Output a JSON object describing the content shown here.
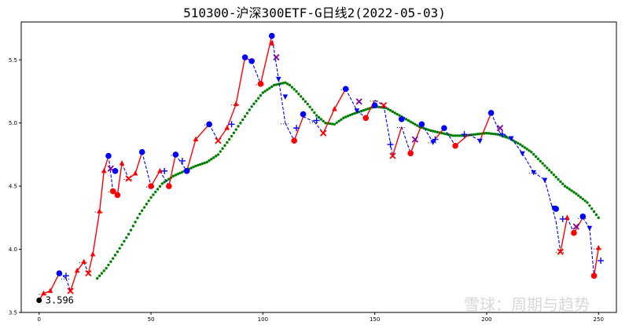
{
  "chart_data": {
    "type": "line",
    "title": "510300-沪深300ETF-G日线2(2022-05-03)",
    "xlim": [
      -8,
      258
    ],
    "ylim": [
      3.5,
      5.8
    ],
    "x_ticks": [
      0,
      50,
      100,
      150,
      200,
      250
    ],
    "y_ticks": [
      3.5,
      4.0,
      4.5,
      5.0,
      5.5
    ],
    "y_tick_labels": [
      "3.5",
      "4.0",
      "4.5",
      "5.0",
      "5.5"
    ],
    "grid": false,
    "annotation": {
      "text": "3.596",
      "x": 0,
      "y": 3.596
    },
    "watermark": "雪球：周期与趋势",
    "colors": {
      "up": "#ff0000",
      "down": "#0000ff",
      "ma": "#008000",
      "start": "#000000"
    },
    "price_series": [
      [
        0,
        3.6,
        "start"
      ],
      [
        2,
        3.65,
        "up"
      ],
      [
        5,
        3.67,
        "up"
      ],
      [
        9,
        3.81,
        "up"
      ],
      [
        12,
        3.77,
        "down"
      ],
      [
        14,
        3.67,
        "down"
      ],
      [
        17,
        3.83,
        "up"
      ],
      [
        20,
        3.9,
        "up"
      ],
      [
        22,
        3.81,
        "down"
      ],
      [
        24,
        3.96,
        "up"
      ],
      [
        27,
        4.3,
        "up"
      ],
      [
        29,
        4.62,
        "up"
      ],
      [
        31,
        4.74,
        "up"
      ],
      [
        33,
        4.46,
        "down"
      ],
      [
        35,
        4.43,
        "down"
      ],
      [
        37,
        4.68,
        "up"
      ],
      [
        40,
        4.56,
        "down"
      ],
      [
        43,
        4.6,
        "up"
      ],
      [
        46,
        4.77,
        "up"
      ],
      [
        50,
        4.5,
        "down"
      ],
      [
        54,
        4.62,
        "up"
      ],
      [
        58,
        4.5,
        "down"
      ],
      [
        61,
        4.75,
        "up"
      ],
      [
        66,
        4.62,
        "down"
      ],
      [
        70,
        4.87,
        "up"
      ],
      [
        76,
        4.99,
        "up"
      ],
      [
        80,
        4.86,
        "down"
      ],
      [
        84,
        4.96,
        "up"
      ],
      [
        88,
        5.15,
        "up"
      ],
      [
        92,
        5.52,
        "up"
      ],
      [
        95,
        5.49,
        "up"
      ],
      [
        99,
        5.31,
        "down"
      ],
      [
        104,
        5.69,
        "up"
      ],
      [
        107,
        5.35,
        "down"
      ],
      [
        110,
        5.0,
        "down"
      ],
      [
        114,
        4.86,
        "down"
      ],
      [
        118,
        5.05,
        "up"
      ],
      [
        123,
        5.01,
        "down"
      ],
      [
        127,
        4.92,
        "down"
      ],
      [
        132,
        5.11,
        "up"
      ],
      [
        137,
        5.27,
        "up"
      ],
      [
        142,
        5.1,
        "down"
      ],
      [
        146,
        5.04,
        "down"
      ],
      [
        150,
        5.18,
        "up"
      ],
      [
        154,
        5.14,
        "down"
      ],
      [
        158,
        4.74,
        "down"
      ],
      [
        162,
        4.97,
        "up"
      ],
      [
        166,
        4.76,
        "down"
      ],
      [
        171,
        4.99,
        "up"
      ],
      [
        176,
        4.85,
        "down"
      ],
      [
        181,
        4.96,
        "up"
      ],
      [
        186,
        4.82,
        "down"
      ],
      [
        192,
        4.91,
        "up"
      ],
      [
        197,
        4.86,
        "down"
      ],
      [
        202,
        5.08,
        "up"
      ],
      [
        206,
        4.92,
        "down"
      ],
      [
        211,
        4.88,
        "down"
      ],
      [
        216,
        4.76,
        "down"
      ],
      [
        221,
        4.61,
        "down"
      ],
      [
        226,
        4.55,
        "down"
      ],
      [
        231,
        4.22,
        "down"
      ],
      [
        233,
        3.98,
        "down"
      ],
      [
        236,
        4.25,
        "up"
      ],
      [
        239,
        4.13,
        "down"
      ],
      [
        243,
        4.25,
        "up"
      ],
      [
        246,
        4.17,
        "down"
      ],
      [
        248,
        3.79,
        "down"
      ],
      [
        250,
        4.01,
        "up"
      ]
    ],
    "markers": [
      {
        "shape": "circle",
        "color": "#0000ff",
        "points": [
          [
            9,
            3.81
          ],
          [
            31,
            4.74
          ],
          [
            34,
            4.62
          ],
          [
            46,
            4.77
          ],
          [
            61,
            4.75
          ],
          [
            66,
            4.62
          ],
          [
            76,
            4.99
          ],
          [
            92,
            5.52
          ],
          [
            95,
            5.49
          ],
          [
            104,
            5.69
          ],
          [
            118,
            5.07
          ],
          [
            137,
            5.27
          ],
          [
            150,
            5.14
          ],
          [
            162,
            5.03
          ],
          [
            171,
            4.99
          ],
          [
            181,
            4.96
          ],
          [
            202,
            5.08
          ],
          [
            231,
            4.32
          ],
          [
            243,
            4.26
          ]
        ]
      },
      {
        "shape": "circle",
        "color": "#ff0000",
        "points": [
          [
            33,
            4.46
          ],
          [
            35,
            4.43
          ],
          [
            50,
            4.5
          ],
          [
            58,
            4.5
          ],
          [
            99,
            5.31
          ],
          [
            114,
            4.86
          ],
          [
            146,
            5.04
          ],
          [
            166,
            4.76
          ],
          [
            186,
            4.82
          ],
          [
            239,
            4.13
          ],
          [
            248,
            3.79
          ]
        ]
      },
      {
        "shape": "triangle-up",
        "color": "#ff0000",
        "points": [
          [
            2,
            3.65
          ],
          [
            5,
            3.67
          ],
          [
            17,
            3.83
          ],
          [
            20,
            3.9
          ],
          [
            24,
            3.96
          ],
          [
            27,
            4.3
          ],
          [
            29,
            4.62
          ],
          [
            37,
            4.68
          ],
          [
            43,
            4.6
          ],
          [
            54,
            4.62
          ],
          [
            70,
            4.87
          ],
          [
            84,
            4.96
          ],
          [
            88,
            5.15
          ],
          [
            104,
            5.63
          ],
          [
            132,
            5.11
          ],
          [
            236,
            4.25
          ],
          [
            250,
            4.01
          ]
        ]
      },
      {
        "shape": "triangle-down",
        "color": "#0000ff",
        "points": [
          [
            107,
            5.35
          ],
          [
            110,
            5.21
          ],
          [
            142,
            5.1
          ],
          [
            176,
            4.85
          ],
          [
            197,
            4.86
          ],
          [
            211,
            4.88
          ],
          [
            216,
            4.76
          ],
          [
            221,
            4.61
          ],
          [
            226,
            4.55
          ],
          [
            230,
            4.33
          ],
          [
            246,
            4.17
          ]
        ]
      },
      {
        "shape": "x",
        "color": "#ff0000",
        "points": [
          [
            14,
            3.67
          ],
          [
            22,
            3.81
          ],
          [
            40,
            4.56
          ],
          [
            80,
            4.86
          ],
          [
            127,
            4.92
          ],
          [
            154,
            5.14
          ],
          [
            158,
            4.74
          ],
          [
            233,
            3.98
          ]
        ]
      },
      {
        "shape": "x",
        "color": "#8000a0",
        "points": [
          [
            32,
            4.64
          ],
          [
            106,
            5.52
          ],
          [
            143,
            5.17
          ],
          [
            168,
            4.87
          ],
          [
            206,
            4.96
          ],
          [
            240,
            4.18
          ]
        ]
      },
      {
        "shape": "plus",
        "color": "#0000ff",
        "points": [
          [
            12,
            3.79
          ],
          [
            56,
            4.62
          ],
          [
            64,
            4.7
          ],
          [
            86,
            4.99
          ],
          [
            115,
            4.96
          ],
          [
            124,
            5.02
          ],
          [
            157,
            4.83
          ],
          [
            177,
            4.87
          ],
          [
            190,
            4.91
          ],
          [
            207,
            4.91
          ],
          [
            234,
            4.24
          ],
          [
            251,
            3.91
          ]
        ]
      }
    ],
    "ma_series": [
      [
        26,
        3.77
      ],
      [
        30,
        3.85
      ],
      [
        35,
        3.98
      ],
      [
        40,
        4.12
      ],
      [
        45,
        4.28
      ],
      [
        50,
        4.41
      ],
      [
        55,
        4.52
      ],
      [
        60,
        4.58
      ],
      [
        65,
        4.62
      ],
      [
        70,
        4.66
      ],
      [
        75,
        4.69
      ],
      [
        80,
        4.75
      ],
      [
        85,
        4.87
      ],
      [
        90,
        5.0
      ],
      [
        95,
        5.13
      ],
      [
        100,
        5.24
      ],
      [
        105,
        5.3
      ],
      [
        110,
        5.32
      ],
      [
        112,
        5.3
      ],
      [
        115,
        5.25
      ],
      [
        120,
        5.15
      ],
      [
        124,
        5.06
      ],
      [
        128,
        5.0
      ],
      [
        132,
        4.99
      ],
      [
        136,
        5.04
      ],
      [
        140,
        5.07
      ],
      [
        145,
        5.1
      ],
      [
        150,
        5.13
      ],
      [
        155,
        5.12
      ],
      [
        160,
        5.07
      ],
      [
        165,
        5.02
      ],
      [
        170,
        4.97
      ],
      [
        175,
        4.94
      ],
      [
        180,
        4.92
      ],
      [
        185,
        4.9
      ],
      [
        190,
        4.9
      ],
      [
        195,
        4.91
      ],
      [
        200,
        4.92
      ],
      [
        205,
        4.91
      ],
      [
        210,
        4.88
      ],
      [
        215,
        4.83
      ],
      [
        220,
        4.77
      ],
      [
        225,
        4.68
      ],
      [
        230,
        4.59
      ],
      [
        235,
        4.5
      ],
      [
        240,
        4.44
      ],
      [
        245,
        4.37
      ],
      [
        250,
        4.25
      ]
    ]
  }
}
